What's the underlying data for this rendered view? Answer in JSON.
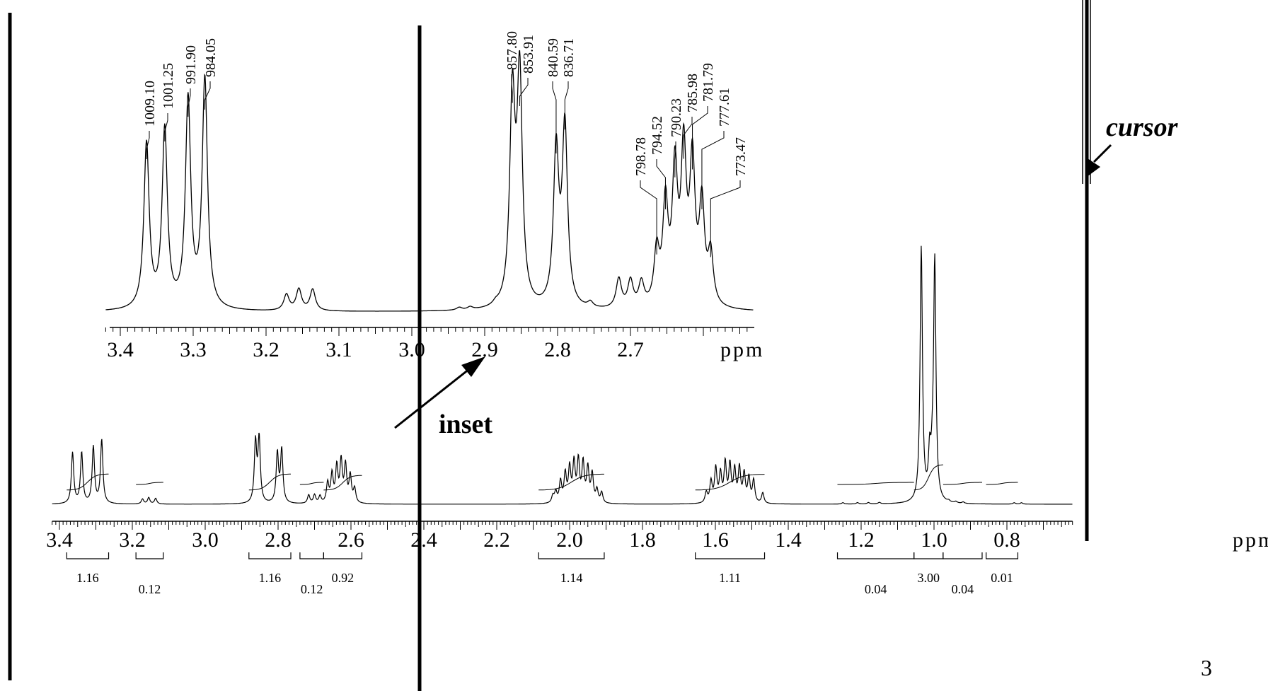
{
  "chart_data": [
    {
      "type": "line",
      "name": "main-spectrum",
      "xlabel": "ppm",
      "x_direction": "decreasing",
      "xlim": [
        3.42,
        0.62
      ],
      "tick_labels": [
        "3.4",
        "3.2",
        "3.0",
        "2.8",
        "2.6",
        "2.4",
        "2.2",
        "2.0",
        "1.8",
        "1.6",
        "1.4",
        "1.2",
        "1.0",
        "0.8"
      ],
      "peaks": [
        {
          "ppm": 3.364,
          "h": 0.72
        },
        {
          "ppm": 3.339,
          "h": 0.72
        },
        {
          "ppm": 3.307,
          "h": 0.8
        },
        {
          "ppm": 3.284,
          "h": 0.9
        },
        {
          "ppm": 3.172,
          "h": 0.07
        },
        {
          "ppm": 3.155,
          "h": 0.09
        },
        {
          "ppm": 3.136,
          "h": 0.08
        },
        {
          "ppm": 2.862,
          "h": 0.85
        },
        {
          "ppm": 2.852,
          "h": 0.9
        },
        {
          "ppm": 2.802,
          "h": 0.7
        },
        {
          "ppm": 2.79,
          "h": 0.75
        },
        {
          "ppm": 2.716,
          "h": 0.12
        },
        {
          "ppm": 2.7,
          "h": 0.12
        },
        {
          "ppm": 2.685,
          "h": 0.1
        },
        {
          "ppm": 2.664,
          "h": 0.28
        },
        {
          "ppm": 2.652,
          "h": 0.4
        },
        {
          "ppm": 2.639,
          "h": 0.5
        },
        {
          "ppm": 2.627,
          "h": 0.58
        },
        {
          "ppm": 2.615,
          "h": 0.52
        },
        {
          "ppm": 2.602,
          "h": 0.38
        },
        {
          "ppm": 2.59,
          "h": 0.2
        },
        {
          "ppm": 2.046,
          "h": 0.1
        },
        {
          "ppm": 2.038,
          "h": 0.15
        },
        {
          "ppm": 2.025,
          "h": 0.3
        },
        {
          "ppm": 2.012,
          "h": 0.4
        },
        {
          "ppm": 2.0,
          "h": 0.48
        },
        {
          "ppm": 1.988,
          "h": 0.55
        },
        {
          "ppm": 1.976,
          "h": 0.58
        },
        {
          "ppm": 1.963,
          "h": 0.55
        },
        {
          "ppm": 1.95,
          "h": 0.48
        },
        {
          "ppm": 1.938,
          "h": 0.4
        },
        {
          "ppm": 1.925,
          "h": 0.18
        },
        {
          "ppm": 1.912,
          "h": 0.15
        },
        {
          "ppm": 1.625,
          "h": 0.15
        },
        {
          "ppm": 1.612,
          "h": 0.3
        },
        {
          "ppm": 1.599,
          "h": 0.48
        },
        {
          "ppm": 1.586,
          "h": 0.4
        },
        {
          "ppm": 1.573,
          "h": 0.55
        },
        {
          "ppm": 1.56,
          "h": 0.52
        },
        {
          "ppm": 1.547,
          "h": 0.45
        },
        {
          "ppm": 1.534,
          "h": 0.48
        },
        {
          "ppm": 1.521,
          "h": 0.4
        },
        {
          "ppm": 1.508,
          "h": 0.35
        },
        {
          "ppm": 1.495,
          "h": 0.32
        },
        {
          "ppm": 1.47,
          "h": 0.15
        },
        {
          "ppm": 1.25,
          "h": 0.02
        },
        {
          "ppm": 1.21,
          "h": 0.02
        },
        {
          "ppm": 1.18,
          "h": 0.02
        },
        {
          "ppm": 1.15,
          "h": 0.02
        },
        {
          "ppm": 1.035,
          "h": 3.6
        },
        {
          "ppm": 1.012,
          "h": 0.6
        },
        {
          "ppm": 1.005,
          "h": 0.3
        },
        {
          "ppm": 0.998,
          "h": 3.4
        },
        {
          "ppm": 0.96,
          "h": 0.02
        },
        {
          "ppm": 0.94,
          "h": 0.02
        },
        {
          "ppm": 0.92,
          "h": 0.02
        },
        {
          "ppm": 0.78,
          "h": 0.02
        },
        {
          "ppm": 0.76,
          "h": 0.02
        }
      ],
      "integrals": [
        {
          "from": 3.38,
          "to": 3.265,
          "value": "1.16"
        },
        {
          "from": 3.19,
          "to": 3.115,
          "value": "0.12"
        },
        {
          "from": 2.88,
          "to": 2.765,
          "value": "1.16"
        },
        {
          "from": 2.74,
          "to": 2.675,
          "value": "0.12"
        },
        {
          "from": 2.675,
          "to": 2.57,
          "value": "0.92"
        },
        {
          "from": 2.085,
          "to": 1.905,
          "value": "1.14"
        },
        {
          "from": 1.655,
          "to": 1.465,
          "value": "1.11"
        },
        {
          "from": 1.265,
          "to": 1.055,
          "value": "0.04"
        },
        {
          "from": 1.055,
          "to": 0.975,
          "value": "3.00"
        },
        {
          "from": 0.975,
          "to": 0.868,
          "value": "0.04"
        },
        {
          "from": 0.857,
          "to": 0.77,
          "value": "0.01"
        }
      ]
    },
    {
      "type": "line",
      "name": "inset-spectrum",
      "xlabel": "ppm",
      "x_direction": "decreasing",
      "xlim": [
        3.42,
        2.53
      ],
      "tick_labels": [
        "3.4",
        "3.3",
        "3.2",
        "3.1",
        "3.0",
        "2.9",
        "2.8",
        "2.7"
      ],
      "peaks": [
        {
          "ppm": 3.364,
          "h": 0.62
        },
        {
          "ppm": 3.339,
          "h": 0.67
        },
        {
          "ppm": 3.307,
          "h": 0.78
        },
        {
          "ppm": 3.284,
          "h": 0.86
        },
        {
          "ppm": 3.172,
          "h": 0.06
        },
        {
          "ppm": 3.155,
          "h": 0.08
        },
        {
          "ppm": 3.136,
          "h": 0.08
        },
        {
          "ppm": 2.935,
          "h": 0.01
        },
        {
          "ppm": 2.92,
          "h": 0.01
        },
        {
          "ppm": 2.885,
          "h": 0.01
        },
        {
          "ppm": 2.862,
          "h": 0.77
        },
        {
          "ppm": 2.852,
          "h": 0.85
        },
        {
          "ppm": 2.802,
          "h": 0.58
        },
        {
          "ppm": 2.79,
          "h": 0.67
        },
        {
          "ppm": 2.755,
          "h": 0.02
        },
        {
          "ppm": 2.716,
          "h": 0.11
        },
        {
          "ppm": 2.7,
          "h": 0.1
        },
        {
          "ppm": 2.685,
          "h": 0.09
        },
        {
          "ppm": 2.664,
          "h": 0.2
        },
        {
          "ppm": 2.652,
          "h": 0.37
        },
        {
          "ppm": 2.639,
          "h": 0.49
        },
        {
          "ppm": 2.627,
          "h": 0.56
        },
        {
          "ppm": 2.615,
          "h": 0.52
        },
        {
          "ppm": 2.602,
          "h": 0.37
        },
        {
          "ppm": 2.59,
          "h": 0.19
        }
      ],
      "peak_labels": [
        {
          "text": "1009.10",
          "ppm": 3.364
        },
        {
          "text": "1001.25",
          "ppm": 3.339
        },
        {
          "text": "991.90",
          "ppm": 3.307
        },
        {
          "text": "984.05",
          "ppm": 3.284
        },
        {
          "text": "857.80",
          "ppm": 2.862
        },
        {
          "text": "853.91",
          "ppm": 2.852
        },
        {
          "text": "840.59",
          "ppm": 2.802
        },
        {
          "text": "836.71",
          "ppm": 2.79
        },
        {
          "text": "798.78",
          "ppm": 2.664
        },
        {
          "text": "794.52",
          "ppm": 2.652
        },
        {
          "text": "790.23",
          "ppm": 2.639
        },
        {
          "text": "785.98",
          "ppm": 2.627
        },
        {
          "text": "781.79",
          "ppm": 2.615
        },
        {
          "text": "777.61",
          "ppm": 2.602
        },
        {
          "text": "773.47",
          "ppm": 2.59
        }
      ]
    }
  ],
  "annotations": {
    "inset_label": "inset",
    "cursor_label": "cursor",
    "page_number": "3"
  }
}
